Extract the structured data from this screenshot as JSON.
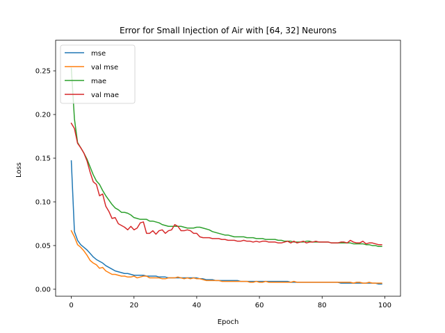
{
  "chart_data": {
    "type": "line",
    "title": "Error for Small Injection of Air with [64, 32] Neurons",
    "xlabel": "Epoch",
    "ylabel": "Loss",
    "xlim": [
      -5,
      105
    ],
    "ylim": [
      -0.008,
      0.285
    ],
    "xticks": [
      0,
      20,
      40,
      60,
      80,
      100
    ],
    "xtick_labels": [
      "0",
      "20",
      "40",
      "60",
      "80",
      "100"
    ],
    "yticks": [
      0.0,
      0.05,
      0.1,
      0.15,
      0.2,
      0.25
    ],
    "ytick_labels": [
      "0.00",
      "0.05",
      "0.10",
      "0.15",
      "0.20",
      "0.25"
    ],
    "grid": false,
    "legend_position": "top-left",
    "x": [
      0,
      1,
      2,
      3,
      4,
      5,
      6,
      7,
      8,
      9,
      10,
      11,
      12,
      13,
      14,
      15,
      16,
      17,
      18,
      19,
      20,
      21,
      22,
      23,
      24,
      25,
      26,
      27,
      28,
      29,
      30,
      31,
      32,
      33,
      34,
      35,
      36,
      37,
      38,
      39,
      40,
      41,
      42,
      43,
      44,
      45,
      46,
      47,
      48,
      49,
      50,
      51,
      52,
      53,
      54,
      55,
      56,
      57,
      58,
      59,
      60,
      61,
      62,
      63,
      64,
      65,
      66,
      67,
      68,
      69,
      70,
      71,
      72,
      73,
      74,
      75,
      76,
      77,
      78,
      79,
      80,
      81,
      82,
      83,
      84,
      85,
      86,
      87,
      88,
      89,
      90,
      91,
      92,
      93,
      94,
      95,
      96,
      97,
      98,
      99
    ],
    "series": [
      {
        "name": "mse",
        "color": "#1f77b4",
        "values": [
          0.147,
          0.066,
          0.056,
          0.051,
          0.048,
          0.045,
          0.041,
          0.037,
          0.034,
          0.032,
          0.03,
          0.027,
          0.025,
          0.023,
          0.021,
          0.02,
          0.019,
          0.018,
          0.018,
          0.017,
          0.016,
          0.016,
          0.016,
          0.016,
          0.015,
          0.015,
          0.015,
          0.015,
          0.014,
          0.014,
          0.014,
          0.013,
          0.013,
          0.013,
          0.013,
          0.013,
          0.013,
          0.013,
          0.013,
          0.013,
          0.013,
          0.012,
          0.012,
          0.011,
          0.011,
          0.011,
          0.01,
          0.01,
          0.01,
          0.01,
          0.01,
          0.01,
          0.01,
          0.01,
          0.009,
          0.009,
          0.009,
          0.009,
          0.009,
          0.009,
          0.009,
          0.009,
          0.009,
          0.009,
          0.009,
          0.009,
          0.009,
          0.009,
          0.009,
          0.009,
          0.008,
          0.008,
          0.008,
          0.008,
          0.008,
          0.008,
          0.008,
          0.008,
          0.008,
          0.008,
          0.008,
          0.008,
          0.008,
          0.008,
          0.008,
          0.008,
          0.007,
          0.007,
          0.007,
          0.007,
          0.007,
          0.007,
          0.007,
          0.007,
          0.007,
          0.007,
          0.007,
          0.007,
          0.006,
          0.006
        ]
      },
      {
        "name": "val mse",
        "color": "#ff7f0e",
        "values": [
          0.067,
          0.06,
          0.051,
          0.048,
          0.044,
          0.039,
          0.033,
          0.03,
          0.028,
          0.024,
          0.025,
          0.021,
          0.019,
          0.017,
          0.017,
          0.016,
          0.015,
          0.015,
          0.014,
          0.014,
          0.015,
          0.013,
          0.014,
          0.015,
          0.015,
          0.013,
          0.013,
          0.013,
          0.013,
          0.012,
          0.012,
          0.013,
          0.013,
          0.013,
          0.014,
          0.013,
          0.012,
          0.013,
          0.012,
          0.013,
          0.012,
          0.012,
          0.011,
          0.01,
          0.01,
          0.01,
          0.01,
          0.01,
          0.009,
          0.009,
          0.009,
          0.009,
          0.009,
          0.009,
          0.009,
          0.009,
          0.009,
          0.008,
          0.008,
          0.009,
          0.008,
          0.008,
          0.009,
          0.008,
          0.008,
          0.008,
          0.008,
          0.008,
          0.008,
          0.008,
          0.008,
          0.009,
          0.008,
          0.008,
          0.008,
          0.008,
          0.008,
          0.008,
          0.008,
          0.008,
          0.008,
          0.008,
          0.008,
          0.008,
          0.008,
          0.008,
          0.008,
          0.008,
          0.008,
          0.008,
          0.007,
          0.008,
          0.008,
          0.007,
          0.007,
          0.008,
          0.007,
          0.007,
          0.007,
          0.007
        ]
      },
      {
        "name": "mae",
        "color": "#2ca02c",
        "values": [
          0.253,
          0.195,
          0.168,
          0.162,
          0.156,
          0.149,
          0.14,
          0.131,
          0.124,
          0.12,
          0.113,
          0.107,
          0.102,
          0.097,
          0.093,
          0.091,
          0.088,
          0.088,
          0.087,
          0.085,
          0.082,
          0.081,
          0.08,
          0.08,
          0.08,
          0.078,
          0.078,
          0.077,
          0.076,
          0.074,
          0.073,
          0.072,
          0.072,
          0.072,
          0.072,
          0.072,
          0.071,
          0.07,
          0.07,
          0.07,
          0.071,
          0.071,
          0.07,
          0.069,
          0.068,
          0.066,
          0.065,
          0.064,
          0.063,
          0.062,
          0.062,
          0.061,
          0.06,
          0.06,
          0.06,
          0.06,
          0.059,
          0.059,
          0.059,
          0.058,
          0.058,
          0.058,
          0.057,
          0.057,
          0.057,
          0.057,
          0.056,
          0.056,
          0.055,
          0.055,
          0.055,
          0.054,
          0.054,
          0.054,
          0.054,
          0.055,
          0.055,
          0.054,
          0.054,
          0.054,
          0.054,
          0.054,
          0.054,
          0.053,
          0.053,
          0.053,
          0.053,
          0.053,
          0.053,
          0.053,
          0.052,
          0.052,
          0.052,
          0.052,
          0.051,
          0.051,
          0.05,
          0.05,
          0.049,
          0.049
        ]
      },
      {
        "name": "val mae",
        "color": "#d62728",
        "values": [
          0.19,
          0.184,
          0.167,
          0.162,
          0.156,
          0.147,
          0.134,
          0.123,
          0.12,
          0.107,
          0.109,
          0.095,
          0.089,
          0.081,
          0.082,
          0.075,
          0.073,
          0.071,
          0.068,
          0.072,
          0.068,
          0.07,
          0.076,
          0.077,
          0.064,
          0.064,
          0.067,
          0.063,
          0.067,
          0.068,
          0.064,
          0.067,
          0.068,
          0.074,
          0.072,
          0.067,
          0.067,
          0.068,
          0.067,
          0.064,
          0.064,
          0.06,
          0.059,
          0.059,
          0.059,
          0.058,
          0.058,
          0.058,
          0.057,
          0.057,
          0.056,
          0.056,
          0.056,
          0.055,
          0.055,
          0.056,
          0.055,
          0.055,
          0.054,
          0.055,
          0.054,
          0.055,
          0.055,
          0.054,
          0.054,
          0.054,
          0.053,
          0.053,
          0.054,
          0.055,
          0.053,
          0.055,
          0.053,
          0.054,
          0.055,
          0.053,
          0.054,
          0.054,
          0.055,
          0.054,
          0.054,
          0.054,
          0.054,
          0.053,
          0.053,
          0.053,
          0.054,
          0.054,
          0.053,
          0.056,
          0.054,
          0.053,
          0.053,
          0.055,
          0.052,
          0.053,
          0.053,
          0.052,
          0.051,
          0.051
        ]
      }
    ]
  }
}
